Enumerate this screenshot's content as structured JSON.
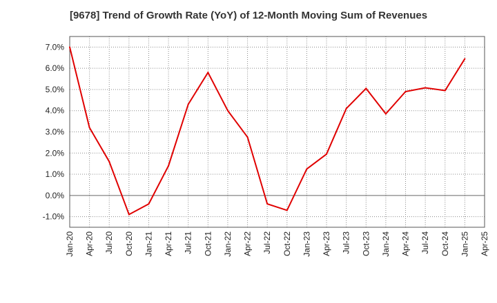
{
  "chart_data": {
    "type": "line",
    "title": "[9678]  Trend of Growth Rate (YoY) of 12-Month Moving Sum of Revenues",
    "xlabel": "",
    "ylabel": "",
    "x": [
      "Jan-20",
      "Apr-20",
      "Jul-20",
      "Oct-20",
      "Jan-21",
      "Apr-21",
      "Jul-21",
      "Oct-21",
      "Jan-22",
      "Apr-22",
      "Jul-22",
      "Oct-22",
      "Jan-23",
      "Apr-23",
      "Jul-23",
      "Oct-23",
      "Jan-24",
      "Apr-24",
      "Jul-24",
      "Oct-24",
      "Jan-25",
      "Apr-25"
    ],
    "y_tick_labels": [
      "7.0%",
      "6.0%",
      "5.0%",
      "4.0%",
      "3.0%",
      "2.0%",
      "1.0%",
      "0.0%",
      "-1.0%"
    ],
    "y_ticks": [
      7,
      6,
      5,
      4,
      3,
      2,
      1,
      0,
      -1
    ],
    "ylim": [
      -1.5,
      7.5
    ],
    "grid": true,
    "series": [
      {
        "color": "#e00000",
        "values": [
          7.0,
          3.2,
          1.6,
          -0.9,
          -0.4,
          1.4,
          4.3,
          5.8,
          4.0,
          2.75,
          -0.4,
          -0.7,
          1.25,
          1.95,
          4.1,
          5.05,
          3.85,
          4.9,
          5.08,
          4.95,
          6.45,
          null
        ]
      }
    ]
  }
}
